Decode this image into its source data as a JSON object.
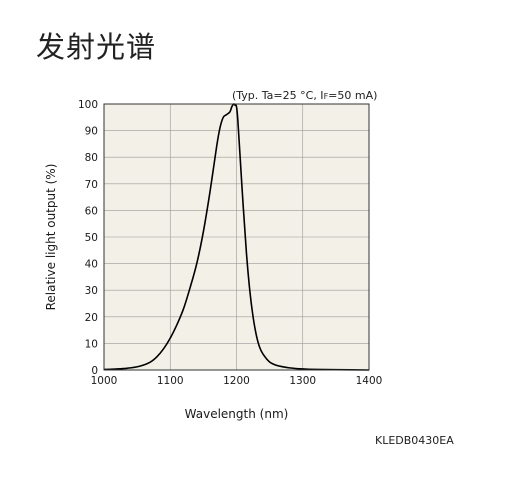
{
  "page": {
    "title": "发射光谱",
    "conditions": {
      "prefix": "(Typ. Ta=25 °C, I",
      "subscript": "F",
      "suffix": "=50 mA)"
    },
    "code": "KLEDB0430EA"
  },
  "chart_data": {
    "type": "line",
    "xlabel": "Wavelength (nm)",
    "ylabel": "Relative light output (%)",
    "xlim": [
      1000,
      1400
    ],
    "ylim": [
      0,
      100
    ],
    "xticks": [
      1000,
      1100,
      1200,
      1300,
      1400
    ],
    "yticks": [
      0,
      10,
      20,
      30,
      40,
      50,
      60,
      70,
      80,
      90,
      100
    ],
    "grid": true,
    "plot_background": "#f2f0e7",
    "line_color": "#000000",
    "series": [
      {
        "x": [
          1000,
          1020,
          1040,
          1055,
          1070,
          1080,
          1090,
          1100,
          1110,
          1120,
          1130,
          1140,
          1150,
          1160,
          1170,
          1175,
          1180,
          1185,
          1190,
          1193,
          1196,
          1198,
          1200,
          1202,
          1205,
          1210,
          1215,
          1220,
          1225,
          1230,
          1235,
          1240,
          1250,
          1260,
          1270,
          1280,
          1300,
          1320,
          1350,
          1400
        ],
        "y": [
          0.2,
          0.4,
          0.8,
          1.5,
          3,
          5,
          8,
          12,
          17,
          23,
          31,
          40,
          52,
          67,
          84,
          91,
          95,
          96,
          97,
          99,
          100,
          99.5,
          99,
          94,
          82,
          62,
          44,
          30,
          20,
          13,
          8.5,
          6,
          3,
          1.8,
          1.2,
          0.8,
          0.4,
          0.2,
          0.1,
          0
        ]
      }
    ]
  }
}
